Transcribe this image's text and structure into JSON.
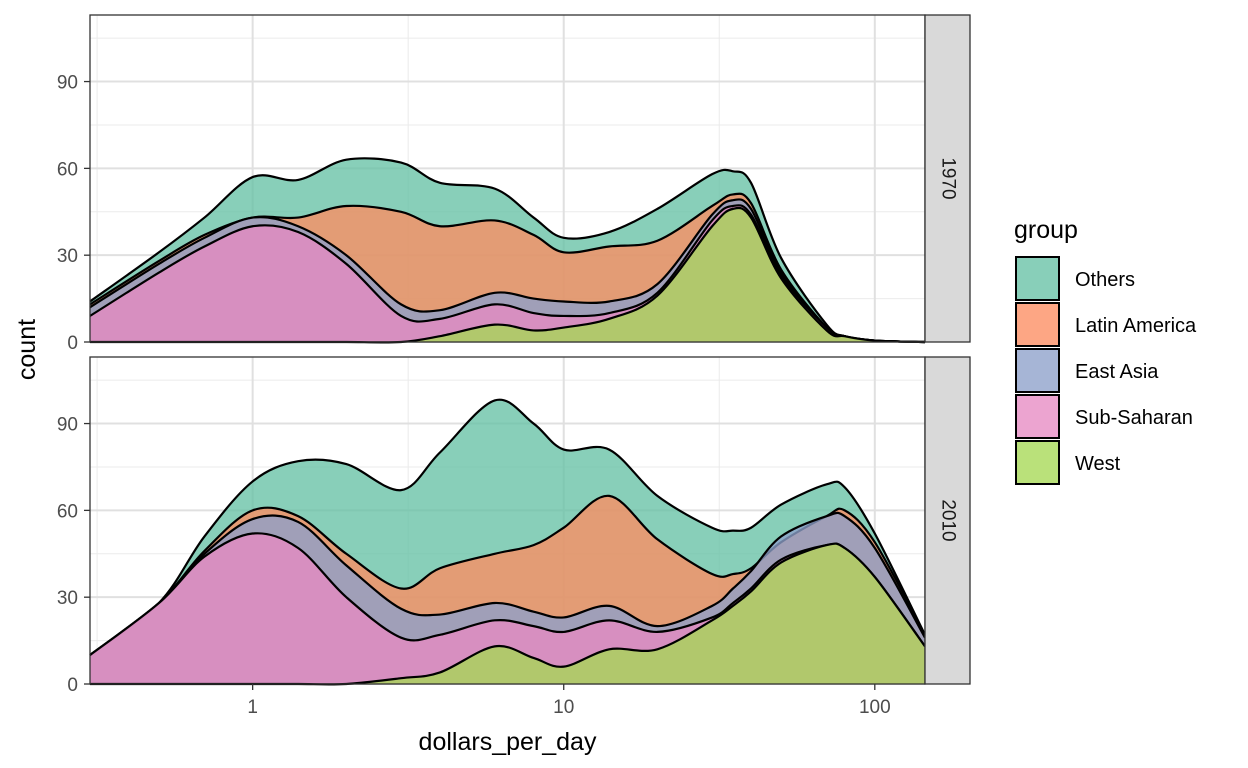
{
  "chart_data": {
    "type": "area",
    "subtype": "stacked-density",
    "xlabel": "dollars_per_day",
    "ylabel": "count",
    "x_scale": "log10",
    "xlim": [
      0.3,
      145
    ],
    "ylim": [
      0,
      113
    ],
    "x_ticks": [
      1,
      10,
      100
    ],
    "x_tick_labels": [
      "1",
      "10",
      "100"
    ],
    "y_ticks": [
      0,
      30,
      60,
      90
    ],
    "y_tick_labels": [
      "0",
      "30",
      "60",
      "90"
    ],
    "grid": true,
    "legend": {
      "title": "group",
      "position": "right",
      "entries": [
        "Others",
        "Latin America",
        "East Asia",
        "Sub-Saharan",
        "West"
      ]
    },
    "colors": {
      "Others": "#66c2a5",
      "Latin America": "#fc8d62",
      "East Asia": "#8da0cb",
      "Sub-Saharan": "#e78ac3",
      "West": "#a6d854"
    },
    "stack_order_bottom_to_top": [
      "West",
      "Sub-Saharan",
      "East Asia",
      "Latin America",
      "Others"
    ],
    "x": [
      0.3,
      0.5,
      0.7,
      1.0,
      1.4,
      2.0,
      3.0,
      4.0,
      6.0,
      8.0,
      10,
      14,
      20,
      30,
      35,
      40,
      50,
      70,
      80,
      100,
      145
    ],
    "panels": [
      {
        "strip": "1970",
        "series": [
          {
            "name": "West",
            "cumulative": [
              0,
              0,
              0,
              0,
              0,
              0,
              0,
              2,
              6,
              4,
              5,
              8,
              16,
              40,
              46,
              43,
              22,
              4,
              2,
              0.5,
              0
            ]
          },
          {
            "name": "Sub-Saharan",
            "cumulative": [
              9,
              24,
              33,
              40,
              38,
              27,
              9,
              8,
              13,
              10,
              9,
              10,
              17,
              42,
              47,
              44,
              23,
              5,
              2,
              0.5,
              0
            ]
          },
          {
            "name": "East Asia",
            "cumulative": [
              12,
              27,
              36,
              43,
              40,
              30,
              13,
              11,
              17,
              15,
              14,
              14,
              20,
              44,
              49,
              46,
              24,
              5,
              2,
              0.5,
              0
            ]
          },
          {
            "name": "Latin America",
            "cumulative": [
              13,
              28,
              37,
              43,
              43,
              47,
              45,
              40,
              42,
              37,
              31,
              33,
              35,
              47,
              51,
              48,
              25,
              5,
              2,
              0.5,
              0
            ]
          },
          {
            "name": "Others",
            "cumulative": [
              14,
              31,
              43,
              57,
              56,
              63,
              62,
              55,
              53,
              43,
              36,
              38,
              46,
              58,
              59,
              55,
              29,
              6,
              2,
              0.5,
              0
            ]
          }
        ]
      },
      {
        "strip": "2010",
        "series": [
          {
            "name": "West",
            "cumulative": [
              0,
              0,
              0,
              0,
              0,
              0,
              2,
              4,
              13,
              9,
              6,
              12,
              12,
              22,
              27,
              32,
              42,
              48,
              47,
              37,
              13
            ]
          },
          {
            "name": "Sub-Saharan",
            "cumulative": [
              10,
              28,
              44,
              52,
              47,
              30,
              16,
              17,
              22,
              20,
              18,
              22,
              18,
              23,
              28,
              33,
              43,
              48,
              47,
              37,
              13
            ]
          },
          {
            "name": "East Asia",
            "cumulative": [
              10,
              28,
              45,
              57,
              56,
              41,
              26,
              24,
              28,
              25,
              23,
              27,
              20,
              27,
              33,
              39,
              51,
              58,
              58,
              47,
              16
            ]
          },
          {
            "name": "Latin America",
            "cumulative": [
              10,
              28,
              46,
              60,
              58,
              45,
              33,
              40,
              45,
              48,
              54,
              65,
              50,
              38,
              38,
              40,
              49,
              58,
              60,
              49,
              17
            ]
          },
          {
            "name": "Others",
            "cumulative": [
              10,
              28,
              51,
              70,
              77,
              76,
              67,
              80,
              98,
              90,
              81,
              81,
              65,
              54,
              53,
              54,
              62,
              69,
              68,
              52,
              17
            ]
          }
        ]
      }
    ]
  }
}
